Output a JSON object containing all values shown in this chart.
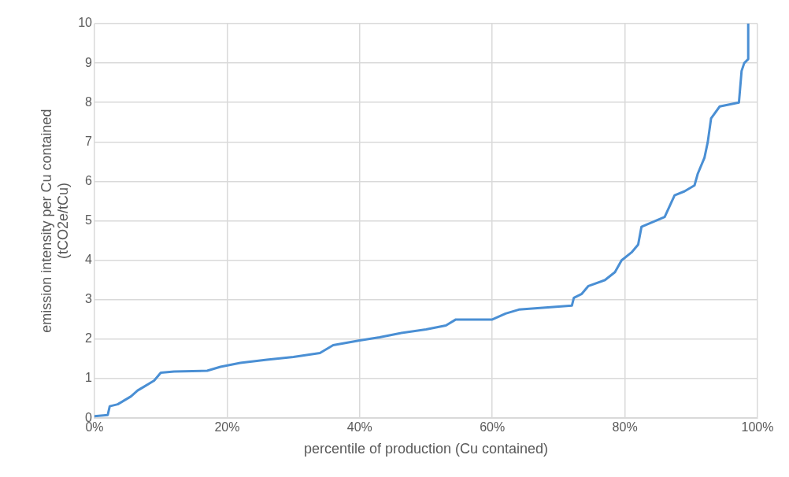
{
  "chart_data": {
    "type": "line",
    "xlabel": "percentile of production (Cu contained)",
    "ylabel": "emission intensity per Cu contained\n(tCO2e/tCu)",
    "x": [
      0,
      2,
      2.3,
      3.5,
      4.5,
      5.5,
      6.5,
      7.5,
      9,
      10,
      12,
      17,
      19,
      22,
      26,
      30,
      34,
      36,
      40,
      43,
      46,
      50,
      53,
      54.5,
      60,
      62,
      64,
      68,
      72,
      72.3,
      73.5,
      74.5,
      77,
      78.5,
      79.5,
      81,
      82,
      82.5,
      86,
      87.5,
      89,
      90.5,
      91,
      92,
      92.5,
      93,
      94.3,
      97.2,
      97.6,
      98,
      98.6,
      98.6
    ],
    "series": [
      {
        "color": "#4a8fd4",
        "values": [
          0.05,
          0.08,
          0.3,
          0.35,
          0.45,
          0.55,
          0.7,
          0.8,
          0.95,
          1.15,
          1.18,
          1.2,
          1.3,
          1.4,
          1.48,
          1.55,
          1.65,
          1.85,
          1.97,
          2.05,
          2.15,
          2.25,
          2.35,
          2.5,
          2.5,
          2.65,
          2.75,
          2.8,
          2.85,
          3.05,
          3.15,
          3.35,
          3.5,
          3.7,
          4.0,
          4.2,
          4.4,
          4.85,
          5.1,
          5.65,
          5.75,
          5.9,
          6.2,
          6.6,
          7.0,
          7.6,
          7.9,
          8.0,
          8.8,
          9.0,
          9.1,
          10
        ]
      }
    ],
    "xlim": [
      0,
      100
    ],
    "xticks": [
      {
        "value": 0,
        "label": "0%"
      },
      {
        "value": 20,
        "label": "20%"
      },
      {
        "value": 40,
        "label": "40%"
      },
      {
        "value": 60,
        "label": "60%"
      },
      {
        "value": 80,
        "label": "80%"
      },
      {
        "value": 100,
        "label": "100%"
      }
    ],
    "ylim": [
      0,
      10
    ],
    "yticks": [
      0,
      1,
      2,
      3,
      4,
      5,
      6,
      7,
      8,
      9,
      10
    ],
    "grid": true,
    "legend": false,
    "marker": "none",
    "line_style": "solid"
  }
}
